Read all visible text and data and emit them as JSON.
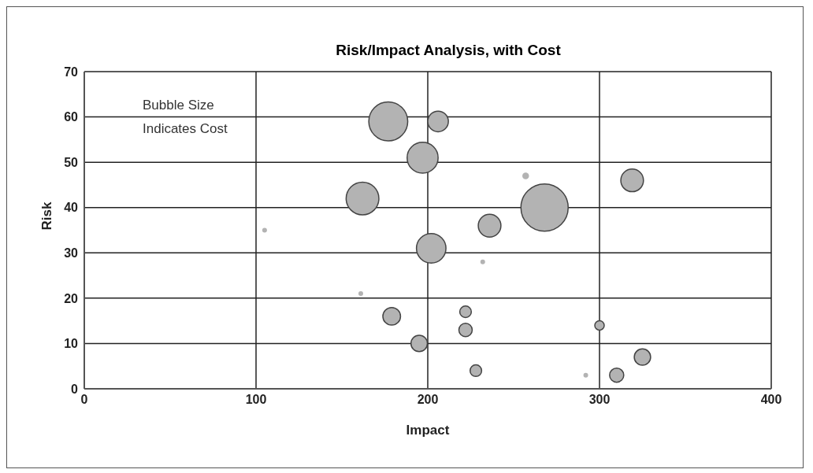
{
  "chart_data": {
    "type": "bubble",
    "title": "Risk/Impact Analysis, with Cost",
    "xlabel": "Impact",
    "ylabel": "Risk",
    "annotations": [
      "Bubble Size\nIndicates Cost"
    ],
    "x": [
      177,
      206,
      197,
      162,
      105,
      268,
      257,
      319,
      236,
      202,
      161,
      179,
      195,
      232,
      222,
      222,
      300,
      325,
      228,
      292,
      310
    ],
    "values": [
      59,
      59,
      51,
      42,
      35,
      40,
      47,
      46,
      36,
      31,
      21,
      16,
      10,
      28,
      17,
      13,
      14,
      7,
      4,
      3,
      3
    ],
    "sizes": [
      0.68,
      0.19,
      0.43,
      0.48,
      0.01,
      1,
      0.02,
      0.23,
      0.23,
      0.39,
      0.005,
      0.14,
      0.12,
      0.005,
      0.06,
      0.08,
      0.04,
      0.12,
      0.06,
      0.005,
      0.09
    ],
    "color": "#b3b3b3",
    "xlim": [
      0,
      400
    ],
    "xticks": [
      0,
      100,
      200,
      300,
      400
    ],
    "ylim": [
      0,
      70
    ],
    "yticks": [
      0,
      10,
      20,
      30,
      40,
      50,
      60,
      70
    ],
    "grid": true,
    "legend": false
  }
}
